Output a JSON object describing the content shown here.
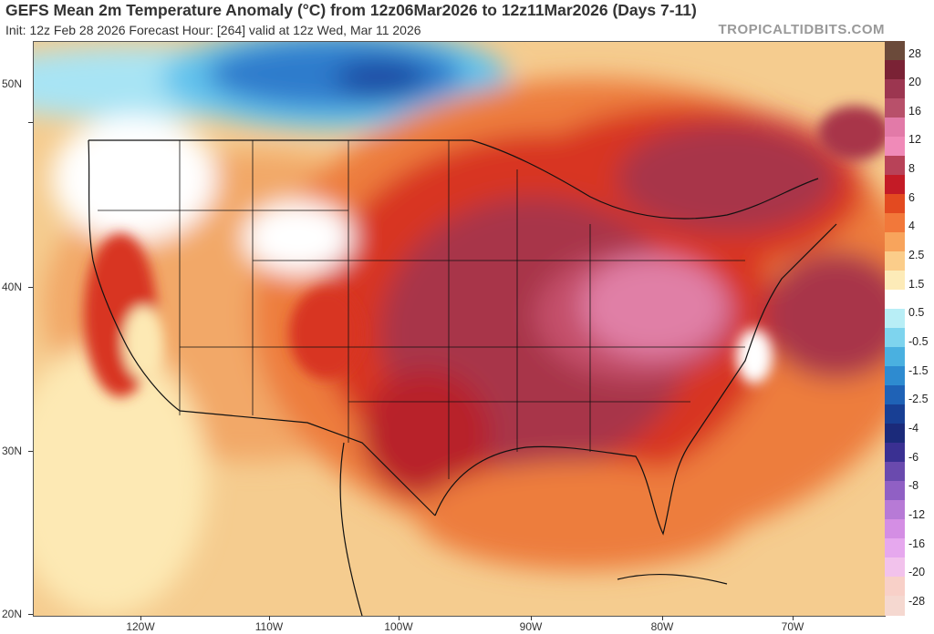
{
  "title": "GEFS Mean 2m Temperature Anomaly (°C) from 12z06Mar2026 to 12z11Mar2026 (Days 7-11)",
  "subtitle": "Init: 12z Feb 28 2026   Forecast Hour: [264]   valid at 12z Wed, Mar 11 2026",
  "credit": "TROPICALTIDBITS.COM",
  "axes": {
    "lat_labels": [
      "50N",
      "40N",
      "30N",
      "20N"
    ],
    "lon_labels": [
      "120W",
      "110W",
      "100W",
      "90W",
      "80W",
      "70W"
    ]
  },
  "colorbar": {
    "labels": [
      "28",
      "20",
      "16",
      "12",
      "8",
      "6",
      "4",
      "2.5",
      "1.5",
      "0.5",
      "-0.5",
      "-1.5",
      "-2.5",
      "-4",
      "-6",
      "-8",
      "-12",
      "-16",
      "-20",
      "-28"
    ],
    "colors": [
      "#6b4a3a",
      "#7a2235",
      "#9c3650",
      "#b8506a",
      "#e27aa8",
      "#f08ab8",
      "#b84258",
      "#c41b26",
      "#e34a20",
      "#f2783a",
      "#f8a45c",
      "#fbcd8a",
      "#fdebb8",
      "#ffffff",
      "#b8eef6",
      "#7ed4ee",
      "#4ab0e0",
      "#2e8bd0",
      "#1f62b6",
      "#183f94",
      "#1b2a7a",
      "#3a3092",
      "#6a4aae",
      "#9060c4",
      "#b77ad6",
      "#d48ee4",
      "#e6a8ee",
      "#f2c2ec",
      "#f8d0c8",
      "#f5d8d0"
    ]
  },
  "map_colors": {
    "ocean_base": "#f5cc8f",
    "land_base": "#f2a868",
    "warm_orange": "#ed7d3c",
    "red": "#d83424",
    "dark_red": "#b8202a",
    "crimson": "#a8364a",
    "rose": "#c4506a",
    "pink": "#e07fa6",
    "pale_cream": "#fde9b4",
    "white": "#ffffff",
    "light_blue": "#a8e4f4",
    "sky_blue": "#62c2ec",
    "blue": "#2e7ccc",
    "dark_blue": "#1e4fa6",
    "border_color": "#111111"
  }
}
